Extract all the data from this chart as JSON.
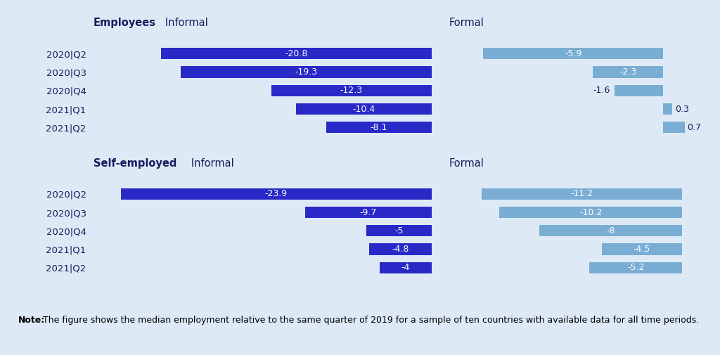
{
  "background_color": "#ddeaf5",
  "periods": [
    "2020|Q2",
    "2020|Q3",
    "2020|Q4",
    "2021|Q1",
    "2021|Q2"
  ],
  "employees_informal": [
    -20.8,
    -19.3,
    -12.3,
    -10.4,
    -8.1
  ],
  "employees_formal": [
    -5.9,
    -2.3,
    -1.6,
    0.3,
    0.7
  ],
  "selfemployed_informal": [
    -23.9,
    -9.7,
    -5.0,
    -4.8,
    -4.0
  ],
  "selfemployed_formal": [
    -11.2,
    -10.2,
    -8.0,
    -4.5,
    -5.2
  ],
  "dark_blue": "#2929c8",
  "light_blue": "#7aadd4",
  "text_color": "#1a1a5e",
  "note_bold": "Note:",
  "note_text": " The figure shows the median employment relative to the same quarter of 2019 for a sample of ten countries with available data for all time periods.",
  "employees_informal_xlim": [
    -26,
    0
  ],
  "employees_formal_xlim": [
    -7,
    1.5
  ],
  "selfemployed_informal_xlim": [
    -26,
    0
  ],
  "selfemployed_formal_xlim": [
    -13,
    1.5
  ]
}
